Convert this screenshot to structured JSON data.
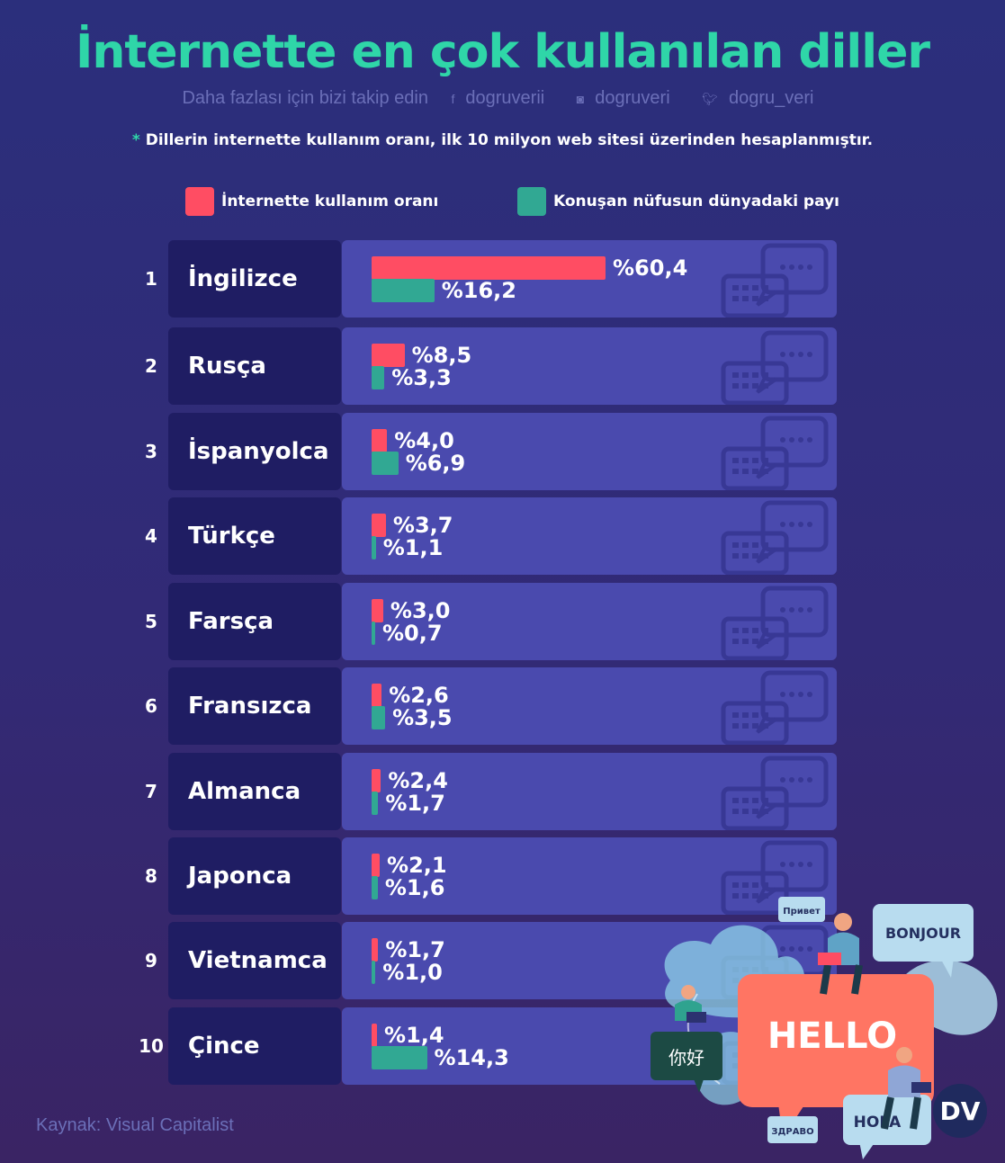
{
  "header": {
    "title": "İnternette en çok kullanılan diller",
    "follow_text": "Daha fazlası için bizi takip edin",
    "facebook": "dogruverii",
    "instagram": "dogruveri",
    "twitter": "dogru_veri",
    "note_star": "*",
    "note": "Dillerin internette kullanım oranı, ilk 10 milyon web sitesi üzerinden hesaplanmıştır."
  },
  "chart_data": {
    "type": "bar",
    "title": "İnternette en çok kullanılan diller",
    "categories": [
      "İngilizce",
      "Rusça",
      "İspanyolca",
      "Türkçe",
      "Farsça",
      "Fransızca",
      "Almanca",
      "Japonca",
      "Vietnamca",
      "Çince"
    ],
    "ranks": [
      "1",
      "2",
      "3",
      "4",
      "5",
      "6",
      "7",
      "8",
      "9",
      "10"
    ],
    "series": [
      {
        "name": "İnternette kullanım oranı",
        "color": "#ff4d63",
        "values": [
          60.4,
          8.5,
          4.0,
          3.7,
          3.0,
          2.6,
          2.4,
          2.1,
          1.7,
          1.4
        ],
        "labels": [
          "%60,4",
          "%8,5",
          "%4,0",
          "%3,7",
          "%3,0",
          "%2,6",
          "%2,4",
          "%2,1",
          "%1,7",
          "%1,4"
        ]
      },
      {
        "name": "Konuşan nüfusun dünyadaki payı",
        "color": "#31a893",
        "values": [
          16.2,
          3.3,
          6.9,
          1.1,
          0.7,
          3.5,
          1.7,
          1.6,
          1.0,
          14.3
        ],
        "labels": [
          "%16,2",
          "%3,3",
          "%6,9",
          "%1,1",
          "%0,7",
          "%3,5",
          "%1,7",
          "%1,6",
          "%1,0",
          "%14,3"
        ]
      }
    ],
    "orientation": "horizontal",
    "legend": "top"
  },
  "footer": {
    "source": "Kaynak: Visual Capitalist"
  },
  "illustration": {
    "bubbles": [
      "Привет",
      "BONJOUR",
      "HELLO",
      "HOLA",
      "ЗДРАВО",
      "你好"
    ],
    "logo": "DV"
  }
}
